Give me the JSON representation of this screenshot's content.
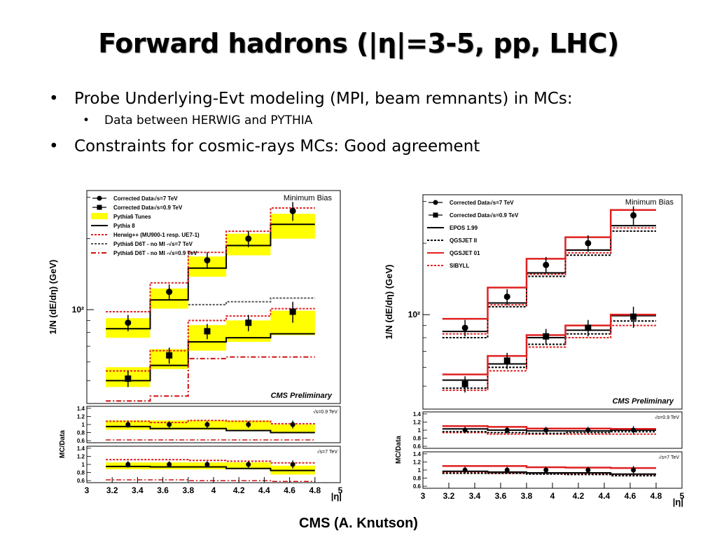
{
  "slide": {
    "title": "Forward hadrons (|η|=3-5, pp, LHC)",
    "bullets": [
      {
        "level": 1,
        "text": "Probe Underlying-Evt modeling (MPI, beam remnants) in MCs:"
      },
      {
        "level": 2,
        "text": "Data between HERWIG and PYTHIA"
      },
      {
        "level": 1,
        "text": "Constraints for cosmic-rays MCs: Good agreement"
      }
    ],
    "caption": "CMS (A. Knutson)"
  },
  "chart_data": [
    {
      "type": "line",
      "chart_style": "step-histogram with data points, log-scale y, two ratio panels",
      "corner_label": "Minimum Bias",
      "watermark": "CMS Preliminary",
      "ylabel": "1/N (dE/dη) (GeV)",
      "xlabel": "|η|",
      "y_scale": "log",
      "ylim": [
        40,
        320
      ],
      "y_tick_label": "10²",
      "xlim": [
        3,
        5
      ],
      "x_ticks": [
        "3",
        "3.2",
        "3.4",
        "3.6",
        "3.8",
        "4",
        "4.2",
        "4.4",
        "4.6",
        "4.8",
        "5"
      ],
      "bin_edges": [
        3.15,
        3.5,
        3.8,
        4.1,
        4.45,
        4.8
      ],
      "bin_centers": [
        3.325,
        3.65,
        3.95,
        4.275,
        4.625
      ],
      "legend_position": "top-left",
      "series": [
        {
          "name": "Corrected Data√s=7 TeV",
          "kind": "data",
          "marker": "circle",
          "color": "#000000",
          "values": [
            88,
            119,
            162,
            200,
            262
          ],
          "errors": [
            7,
            9,
            13,
            16,
            24
          ]
        },
        {
          "name": "Corrected Data√s=0.9 TeV",
          "kind": "data",
          "marker": "square",
          "color": "#000000",
          "values": [
            51,
            64,
            81,
            88,
            98
          ],
          "errors": [
            4,
            5,
            6,
            7,
            10
          ]
        },
        {
          "name": "Pythia6 Tunes",
          "kind": "band",
          "color": "#ffff00",
          "lo7": [
            76,
            101,
            138,
            170,
            200
          ],
          "hi7": [
            92,
            123,
            168,
            210,
            255
          ],
          "lo09": [
            47,
            56,
            67,
            73,
            78
          ],
          "hi09": [
            57,
            68,
            86,
            90,
            99
          ]
        },
        {
          "name": "Pythia 8",
          "kind": "step",
          "color": "#000000",
          "dash": "solid",
          "v7": [
            83,
            110,
            150,
            187,
            230
          ],
          "v09": [
            50,
            58,
            73,
            76,
            79
          ]
        },
        {
          "name": "Herwig++ (MU900-1 resp. UE7-1)",
          "kind": "step",
          "color": "#e02020",
          "dash": "dot",
          "v7": [
            98,
            130,
            175,
            215,
            270
          ],
          "v09": [
            55,
            67,
            90,
            94,
            101
          ]
        },
        {
          "name": "Pythia6 D6T - no MI -√s=7 TeV",
          "kind": "step",
          "color": "#555555",
          "dash": "dot",
          "v7": [
            null,
            null,
            105,
            108,
            112
          ],
          "v09": []
        },
        {
          "name": "Pythia6 D6T - no MI -√s=0.9 TeV",
          "kind": "step",
          "color": "#d01010",
          "dash": "dashdot",
          "v7": [],
          "v09": [
            41,
            43,
            62,
            63,
            63
          ]
        }
      ],
      "ratio_panels": [
        {
          "label": "√s=0.9 TeV",
          "ylabel": "MC/Data",
          "ylim": [
            0.55,
            1.45
          ],
          "y_ticks": [
            "1.4",
            "1.2",
            "1",
            "0.8",
            "0.6"
          ],
          "data": [
            1.0,
            1.0,
            1.0,
            1.0,
            1.0
          ],
          "errors": [
            0.08,
            0.08,
            0.08,
            0.08,
            0.1
          ],
          "band_lo": [
            0.87,
            0.87,
            0.87,
            0.87,
            0.8
          ],
          "band_hi": [
            1.1,
            1.1,
            1.1,
            1.1,
            1.0
          ],
          "pythia8": [
            0.95,
            0.9,
            0.9,
            0.85,
            0.8
          ],
          "herwig": [
            1.08,
            1.05,
            1.1,
            1.08,
            1.02
          ],
          "d6t_nomi": [
            0.62,
            0.62,
            0.62,
            0.62,
            0.62
          ]
        },
        {
          "label": "√s=7 TeV",
          "ylabel": "",
          "ylim": [
            0.55,
            1.45
          ],
          "y_ticks": [
            "1.4",
            "1.2",
            "1",
            "0.8",
            "0.6"
          ],
          "data": [
            1.0,
            1.0,
            1.0,
            1.0,
            1.0
          ],
          "errors": [
            0.08,
            0.08,
            0.08,
            0.08,
            0.1
          ],
          "band_lo": [
            0.88,
            0.88,
            0.88,
            0.88,
            0.75
          ],
          "band_hi": [
            1.05,
            1.05,
            1.05,
            1.05,
            0.97
          ],
          "pythia8": [
            0.95,
            0.94,
            0.94,
            0.9,
            0.85
          ],
          "herwig": [
            1.12,
            1.12,
            1.1,
            1.08,
            1.04
          ],
          "d6t_nomi": [
            0.62,
            0.62,
            0.6,
            0.6,
            0.58
          ]
        }
      ]
    },
    {
      "type": "line",
      "chart_style": "step-histogram with data points, log-scale y, two ratio panels",
      "corner_label": "Minimum Bias",
      "watermark": "CMS Preliminary",
      "ylabel": "1/N (dE/dη) (GeV)",
      "xlabel": "|η|",
      "y_scale": "log",
      "ylim": [
        40,
        320
      ],
      "y_tick_label": "10²",
      "xlim": [
        3,
        5
      ],
      "x_ticks": [
        "3",
        "3.2",
        "3.4",
        "3.6",
        "3.8",
        "4",
        "4.2",
        "4.4",
        "4.6",
        "4.8",
        "5"
      ],
      "bin_edges": [
        3.15,
        3.5,
        3.8,
        4.1,
        4.45,
        4.8
      ],
      "bin_centers": [
        3.325,
        3.65,
        3.95,
        4.275,
        4.625
      ],
      "legend_position": "top-left",
      "series": [
        {
          "name": "Corrected Data√s=7 TeV",
          "kind": "data",
          "marker": "circle",
          "color": "#000000",
          "values": [
            88,
            119,
            162,
            200,
            262
          ],
          "errors": [
            7,
            9,
            13,
            16,
            24
          ]
        },
        {
          "name": "Corrected Data√s=0.9 TeV",
          "kind": "data",
          "marker": "square",
          "color": "#000000",
          "values": [
            51,
            64,
            81,
            88,
            98
          ],
          "errors": [
            4,
            5,
            6,
            7,
            10
          ]
        },
        {
          "name": "EPOS 1.99",
          "kind": "step",
          "color": "#000000",
          "dash": "solid",
          "v7": [
            85,
            112,
            150,
            187,
            237
          ],
          "v09": [
            53,
            62,
            80,
            86,
            99
          ]
        },
        {
          "name": "QGSJET II",
          "kind": "step",
          "color": "#000000",
          "dash": "dot",
          "v7": [
            80,
            108,
            145,
            178,
            225
          ],
          "v09": [
            49,
            60,
            75,
            83,
            94
          ]
        },
        {
          "name": "QGSJET 01",
          "kind": "step",
          "color": "#e02020",
          "dash": "solid",
          "v7": [
            96,
            130,
            172,
            212,
            276
          ],
          "v09": [
            56,
            67,
            82,
            90,
            100
          ]
        },
        {
          "name": "SIBYLL",
          "kind": "step",
          "color": "#e02020",
          "dash": "dot",
          "v7": [
            83,
            110,
            148,
            182,
            232
          ],
          "v09": [
            48,
            58,
            73,
            80,
            90
          ]
        }
      ],
      "ratio_panels": [
        {
          "label": "√s=0.9 TeV",
          "ylabel": "MC/Data",
          "ylim": [
            0.55,
            1.45
          ],
          "y_ticks": [
            "1.4",
            "1.2",
            "1",
            "0.8",
            "0.6"
          ],
          "data": [
            1.0,
            1.0,
            1.0,
            1.0,
            1.0
          ],
          "errors": [
            0.08,
            0.08,
            0.08,
            0.08,
            0.1
          ],
          "epos": [
            1.03,
            1.0,
            0.98,
            0.98,
            1.0
          ],
          "qgsjet2": [
            0.96,
            0.94,
            0.92,
            0.94,
            0.96
          ],
          "qgsjet01": [
            1.1,
            1.08,
            1.04,
            1.04,
            1.03
          ],
          "sibyll": [
            0.94,
            0.9,
            0.9,
            0.9,
            0.9
          ]
        },
        {
          "label": "√s=7 TeV",
          "ylabel": "",
          "ylim": [
            0.55,
            1.45
          ],
          "y_ticks": [
            "1.4",
            "1.2",
            "1",
            "0.8",
            "0.6"
          ],
          "data": [
            1.0,
            1.0,
            1.0,
            1.0,
            1.0
          ],
          "errors": [
            0.08,
            0.08,
            0.08,
            0.08,
            0.1
          ],
          "epos": [
            0.97,
            0.95,
            0.93,
            0.93,
            0.9
          ],
          "qgsjet2": [
            0.92,
            0.92,
            0.9,
            0.89,
            0.86
          ],
          "qgsjet01": [
            1.1,
            1.1,
            1.07,
            1.06,
            1.05
          ],
          "sibyll": [
            0.94,
            0.92,
            0.91,
            0.9,
            0.89
          ]
        }
      ]
    }
  ]
}
